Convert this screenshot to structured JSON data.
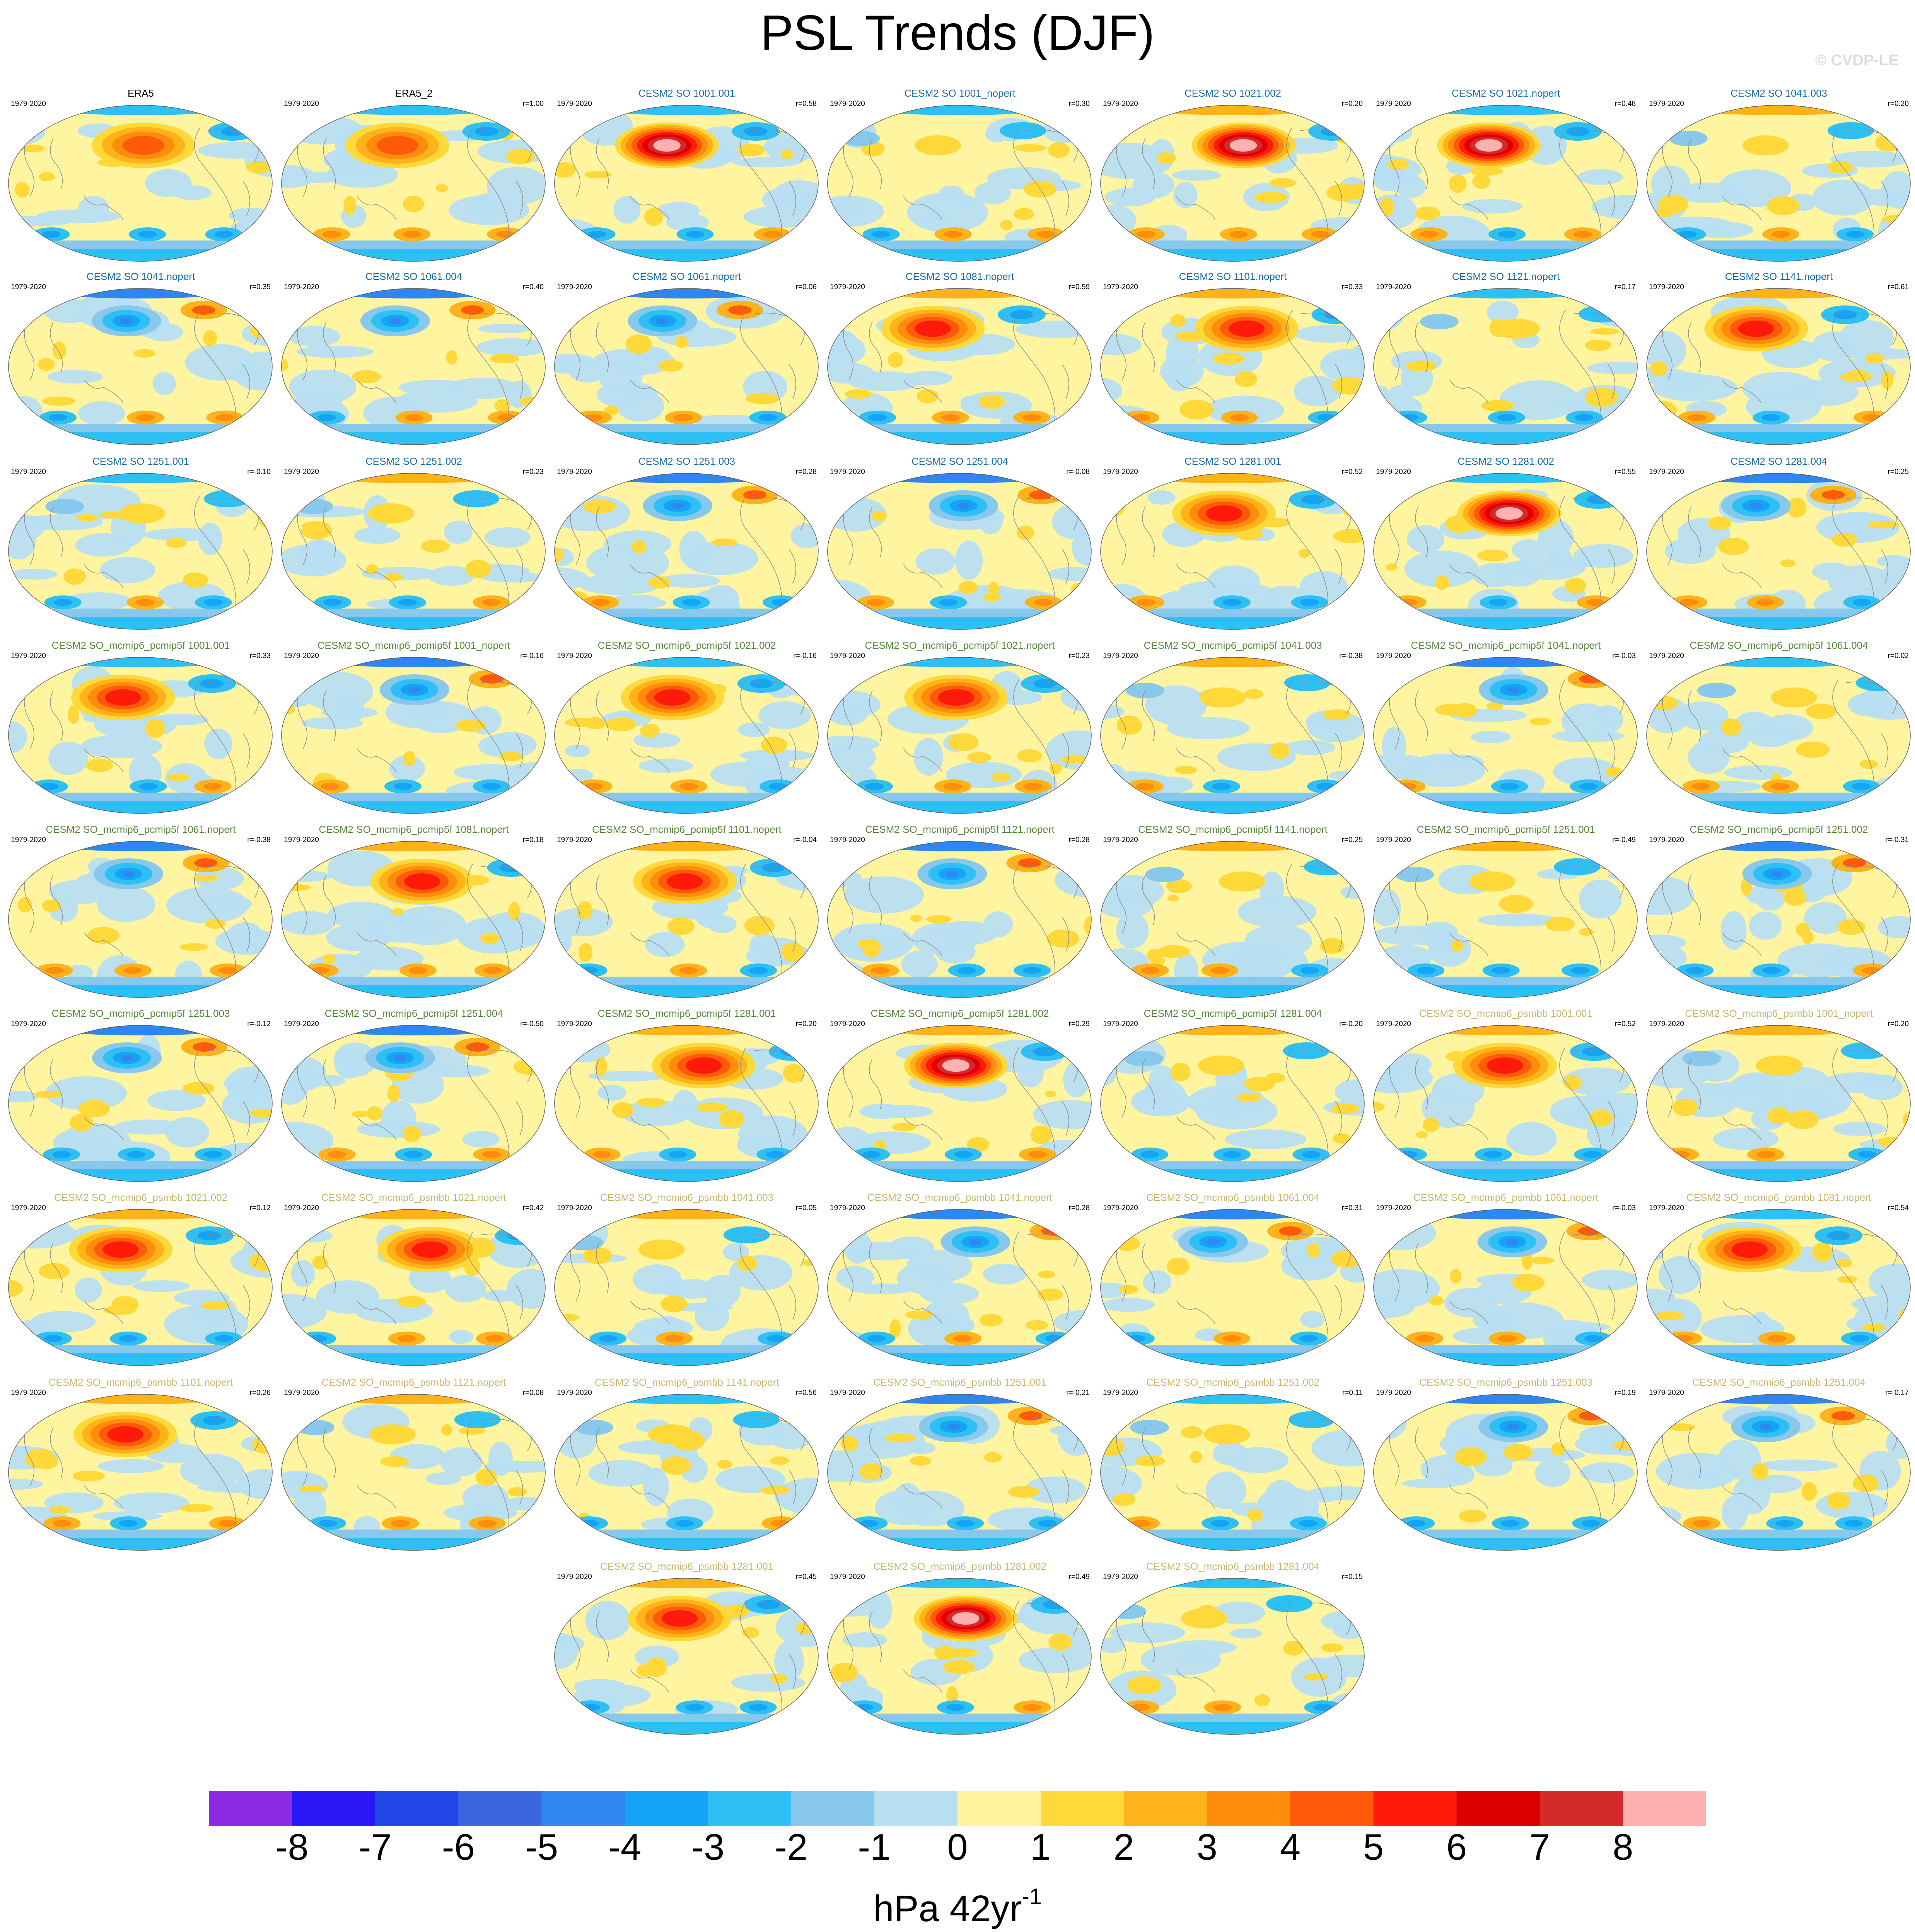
{
  "title": "PSL Trends (DJF)",
  "watermark": "© CVDP-LE",
  "units": {
    "base": "hPa 42yr",
    "exponent": "-1"
  },
  "period": "1979-2020",
  "colors": {
    "title_obs": "#000000",
    "title_so": "#1a6ea8",
    "title_pcmip5f": "#5a8a3c",
    "title_psmbb": "#c9b870",
    "coast": "#8a8a8a"
  },
  "chart_data": {
    "type": "map_panels",
    "levels": [
      -8,
      -7,
      -6,
      -5,
      -4,
      -3,
      -2,
      -1,
      0,
      1,
      2,
      3,
      4,
      5,
      6,
      7,
      8
    ],
    "colorbar_colors": [
      "#8a2be2",
      "#2a17f5",
      "#2147e6",
      "#3a66e0",
      "#2f86f0",
      "#15a3f5",
      "#2ec0f5",
      "#87c8ec",
      "#b8def2",
      "#fff5a0",
      "#ffd93a",
      "#ffb21a",
      "#ff8c0a",
      "#ff5a0a",
      "#ff1a0a",
      "#de0000",
      "#d42a2a",
      "#ffb0b0"
    ],
    "panels": [
      {
        "title": "ERA5",
        "r": "",
        "group": "obs",
        "pattern": "era5"
      },
      {
        "title": "ERA5_2",
        "r": "r=1.00",
        "group": "obs",
        "pattern": "era5"
      },
      {
        "title": "CESM2 SO 1001.001",
        "r": "r=0.58",
        "group": "so",
        "pattern": "strongpos"
      },
      {
        "title": "CESM2 SO 1001_nopert",
        "r": "r=0.30",
        "group": "so",
        "pattern": "mild"
      },
      {
        "title": "CESM2 SO 1021.002",
        "r": "r=0.20",
        "group": "so",
        "pattern": "strongpos"
      },
      {
        "title": "CESM2 SO 1021.nopert",
        "r": "r=0.48",
        "group": "so",
        "pattern": "strongpos"
      },
      {
        "title": "CESM2 SO 1041.003",
        "r": "r=0.20",
        "group": "so",
        "pattern": "mild"
      },
      {
        "title": "CESM2 SO 1041.nopert",
        "r": "r=0.35",
        "group": "so",
        "pattern": "neg"
      },
      {
        "title": "CESM2 SO 1061.004",
        "r": "r=0.40",
        "group": "so",
        "pattern": "neg"
      },
      {
        "title": "CESM2 SO 1061.nopert",
        "r": "r=0.06",
        "group": "so",
        "pattern": "neg"
      },
      {
        "title": "CESM2 SO 1081.nopert",
        "r": "r=0.59",
        "group": "so",
        "pattern": "pos"
      },
      {
        "title": "CESM2 SO 1101.nopert",
        "r": "r=0.33",
        "group": "so",
        "pattern": "pos"
      },
      {
        "title": "CESM2 SO 1121.nopert",
        "r": "r=0.17",
        "group": "so",
        "pattern": "mild"
      },
      {
        "title": "CESM2 SO 1141.nopert",
        "r": "r=0.61",
        "group": "so",
        "pattern": "pos"
      },
      {
        "title": "CESM2 SO 1251.001",
        "r": "r=-0.10",
        "group": "so",
        "pattern": "mild"
      },
      {
        "title": "CESM2 SO 1251.002",
        "r": "r=0.23",
        "group": "so",
        "pattern": "mild"
      },
      {
        "title": "CESM2 SO 1251.003",
        "r": "r=0.28",
        "group": "so",
        "pattern": "neg"
      },
      {
        "title": "CESM2 SO 1251.004",
        "r": "r=-0.08",
        "group": "so",
        "pattern": "neg"
      },
      {
        "title": "CESM2 SO 1281.001",
        "r": "r=0.52",
        "group": "so",
        "pattern": "pos"
      },
      {
        "title": "CESM2 SO 1281.002",
        "r": "r=0.55",
        "group": "so",
        "pattern": "strongpos"
      },
      {
        "title": "CESM2 SO 1281.004",
        "r": "r=0.25",
        "group": "so",
        "pattern": "neg"
      },
      {
        "title": "CESM2 SO_mcmip6_pcmip5f 1001.001",
        "r": "r=0.33",
        "group": "pcmip5f",
        "pattern": "pos"
      },
      {
        "title": "CESM2 SO_mcmip6_pcmip5f 1001_nopert",
        "r": "r=-0.16",
        "group": "pcmip5f",
        "pattern": "neg"
      },
      {
        "title": "CESM2 SO_mcmip6_pcmip5f 1021.002",
        "r": "r=-0.16",
        "group": "pcmip5f",
        "pattern": "pos"
      },
      {
        "title": "CESM2 SO_mcmip6_pcmip5f 1021.nopert",
        "r": "r=0.23",
        "group": "pcmip5f",
        "pattern": "pos"
      },
      {
        "title": "CESM2 SO_mcmip6_pcmip5f 1041.003",
        "r": "r=-0.38",
        "group": "pcmip5f",
        "pattern": "mild"
      },
      {
        "title": "CESM2 SO_mcmip6_pcmip5f 1041.nopert",
        "r": "r=-0.03",
        "group": "pcmip5f",
        "pattern": "neg"
      },
      {
        "title": "CESM2 SO_mcmip6_pcmip5f 1061.004",
        "r": "r=0.02",
        "group": "pcmip5f",
        "pattern": "mild"
      },
      {
        "title": "CESM2 SO_mcmip6_pcmip5f 1061.nopert",
        "r": "r=-0.38",
        "group": "pcmip5f",
        "pattern": "neg"
      },
      {
        "title": "CESM2 SO_mcmip6_pcmip5f 1081.nopert",
        "r": "r=0.18",
        "group": "pcmip5f",
        "pattern": "pos"
      },
      {
        "title": "CESM2 SO_mcmip6_pcmip5f 1101.nopert",
        "r": "r=-0.04",
        "group": "pcmip5f",
        "pattern": "pos"
      },
      {
        "title": "CESM2 SO_mcmip6_pcmip5f 1121.nopert",
        "r": "r=0.28",
        "group": "pcmip5f",
        "pattern": "neg"
      },
      {
        "title": "CESM2 SO_mcmip6_pcmip5f 1141.nopert",
        "r": "r=0.25",
        "group": "pcmip5f",
        "pattern": "mild"
      },
      {
        "title": "CESM2 SO_mcmip6_pcmip5f 1251.001",
        "r": "r=-0.49",
        "group": "pcmip5f",
        "pattern": "mild"
      },
      {
        "title": "CESM2 SO_mcmip6_pcmip5f 1251.002",
        "r": "r=-0.31",
        "group": "pcmip5f",
        "pattern": "neg"
      },
      {
        "title": "CESM2 SO_mcmip6_pcmip5f 1251.003",
        "r": "r=-0.12",
        "group": "pcmip5f",
        "pattern": "neg"
      },
      {
        "title": "CESM2 SO_mcmip6_pcmip5f 1251.004",
        "r": "r=-0.50",
        "group": "pcmip5f",
        "pattern": "neg"
      },
      {
        "title": "CESM2 SO_mcmip6_pcmip5f 1281.001",
        "r": "r=0.20",
        "group": "pcmip5f",
        "pattern": "pos"
      },
      {
        "title": "CESM2 SO_mcmip6_pcmip5f 1281.002",
        "r": "r=0.29",
        "group": "pcmip5f",
        "pattern": "strongpos"
      },
      {
        "title": "CESM2 SO_mcmip6_pcmip5f 1281.004",
        "r": "r=-0.20",
        "group": "pcmip5f",
        "pattern": "mild"
      },
      {
        "title": "CESM2 SO_mcmip6_psmbb 1001.001",
        "r": "r=0.52",
        "group": "psmbb",
        "pattern": "pos"
      },
      {
        "title": "CESM2 SO_mcmip6_psmbb 1001_nopert",
        "r": "r=0.20",
        "group": "psmbb",
        "pattern": "mild"
      },
      {
        "title": "CESM2 SO_mcmip6_psmbb 1021.002",
        "r": "r=0.12",
        "group": "psmbb",
        "pattern": "pos"
      },
      {
        "title": "CESM2 SO_mcmip6_psmbb 1021.nopert",
        "r": "r=0.42",
        "group": "psmbb",
        "pattern": "pos"
      },
      {
        "title": "CESM2 SO_mcmip6_psmbb 1041.003",
        "r": "r=0.05",
        "group": "psmbb",
        "pattern": "mild"
      },
      {
        "title": "CESM2 SO_mcmip6_psmbb 1041.nopert",
        "r": "r=0.28",
        "group": "psmbb",
        "pattern": "neg"
      },
      {
        "title": "CESM2 SO_mcmip6_psmbb 1061.004",
        "r": "r=0.31",
        "group": "psmbb",
        "pattern": "neg"
      },
      {
        "title": "CESM2 SO_mcmip6_psmbb 1061.nopert",
        "r": "r=-0.03",
        "group": "psmbb",
        "pattern": "neg"
      },
      {
        "title": "CESM2 SO_mcmip6_psmbb 1081.nopert",
        "r": "r=0.54",
        "group": "psmbb",
        "pattern": "pos"
      },
      {
        "title": "CESM2 SO_mcmip6_psmbb 1101.nopert",
        "r": "r=0.26",
        "group": "psmbb",
        "pattern": "pos"
      },
      {
        "title": "CESM2 SO_mcmip6_psmbb 1121.nopert",
        "r": "r=0.08",
        "group": "psmbb",
        "pattern": "mild"
      },
      {
        "title": "CESM2 SO_mcmip6_psmbb 1141.nopert",
        "r": "r=0.56",
        "group": "psmbb",
        "pattern": "mild"
      },
      {
        "title": "CESM2 SO_mcmip6_psmbb 1251.001",
        "r": "r=-0.21",
        "group": "psmbb",
        "pattern": "neg"
      },
      {
        "title": "CESM2 SO_mcmip6_psmbb 1251.002",
        "r": "r=0.11",
        "group": "psmbb",
        "pattern": "mild"
      },
      {
        "title": "CESM2 SO_mcmip6_psmbb 1251.003",
        "r": "r=0.19",
        "group": "psmbb",
        "pattern": "neg"
      },
      {
        "title": "CESM2 SO_mcmip6_psmbb 1251.004",
        "r": "r=-0.17",
        "group": "psmbb",
        "pattern": "neg"
      },
      {
        "title": "CESM2 SO_mcmip6_psmbb 1281.001",
        "r": "r=0.45",
        "group": "psmbb",
        "pattern": "pos"
      },
      {
        "title": "CESM2 SO_mcmip6_psmbb 1281.002",
        "r": "r=0.49",
        "group": "psmbb",
        "pattern": "strongpos"
      },
      {
        "title": "CESM2 SO_mcmip6_psmbb 1281.004",
        "r": "r=0.15",
        "group": "psmbb",
        "pattern": "mild"
      }
    ]
  }
}
